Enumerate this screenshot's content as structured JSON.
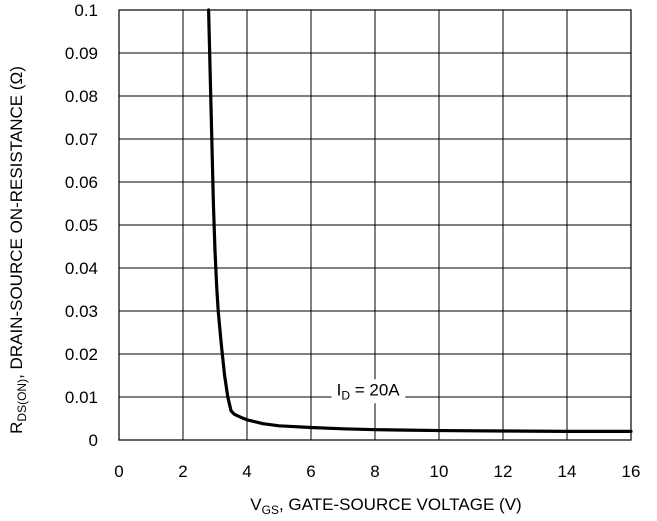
{
  "chart_data": {
    "type": "line",
    "title": "",
    "xlabel_parts": {
      "main": "V",
      "sub": "GS",
      "rest": ", GATE-SOURCE VOLTAGE (V)"
    },
    "ylabel_parts": {
      "main": "R",
      "sub": "DS(ON)",
      "rest": ", DRAIN-SOURCE ON-RESISTANCE (Ω)"
    },
    "xlim": [
      0,
      16
    ],
    "ylim": [
      0,
      0.1
    ],
    "x_ticks": [
      "0",
      "2",
      "4",
      "6",
      "8",
      "10",
      "12",
      "14",
      "16"
    ],
    "y_ticks": [
      "0",
      "0.01",
      "0.02",
      "0.03",
      "0.04",
      "0.05",
      "0.06",
      "0.07",
      "0.08",
      "0.09",
      "0.1"
    ],
    "grid": true,
    "line_color": "#000000",
    "annotation": {
      "main": "I",
      "sub": "D",
      "rest": " = 20A",
      "x": 6.8,
      "y": 0.0104
    },
    "series": [
      {
        "points": [
          [
            2.8,
            0.1
          ],
          [
            2.85,
            0.085
          ],
          [
            2.9,
            0.07
          ],
          [
            2.95,
            0.055
          ],
          [
            3.0,
            0.044
          ],
          [
            3.05,
            0.036
          ],
          [
            3.1,
            0.03
          ],
          [
            3.2,
            0.022
          ],
          [
            3.3,
            0.015
          ],
          [
            3.4,
            0.01
          ],
          [
            3.5,
            0.0068
          ],
          [
            3.6,
            0.006
          ],
          [
            3.8,
            0.0053
          ],
          [
            4.0,
            0.0047
          ],
          [
            4.5,
            0.0038
          ],
          [
            5.0,
            0.0033
          ],
          [
            6.0,
            0.0029
          ],
          [
            7.0,
            0.0026
          ],
          [
            8.0,
            0.0024
          ],
          [
            9.0,
            0.0023
          ],
          [
            10.0,
            0.0022
          ],
          [
            12.0,
            0.0021
          ],
          [
            14.0,
            0.002
          ],
          [
            16.0,
            0.002
          ]
        ]
      }
    ]
  }
}
